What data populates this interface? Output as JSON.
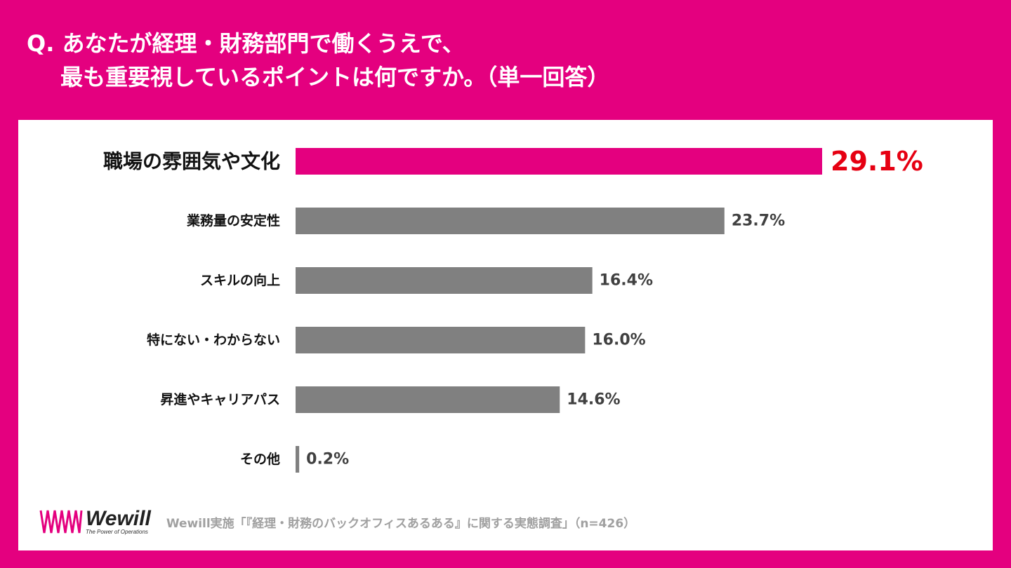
{
  "question": {
    "line1": "Q. あなたが経理・財務部門で働くうえで、",
    "line2": "最も重要視しているポイントは何ですか。（単一回答）"
  },
  "chart_data": {
    "type": "bar",
    "orientation": "horizontal",
    "categories": [
      "職場の雰囲気や文化",
      "業務量の安定性",
      "スキルの向上",
      "特にない・わからない",
      "昇進やキャリアパス",
      "その他"
    ],
    "values": [
      29.1,
      23.7,
      16.4,
      16.0,
      14.6,
      0.2
    ],
    "value_labels": [
      "29.1%",
      "23.7%",
      "16.4%",
      "16.0%",
      "14.6%",
      "0.2%"
    ],
    "highlight_index": 0,
    "colors": {
      "highlight": "#e4007f",
      "default": "#808080",
      "highlight_label": "#e60012",
      "default_label": "#404040"
    },
    "xlim": [
      0,
      29.1
    ],
    "grid": false
  },
  "footer": {
    "logo_name": "Wewill",
    "logo_tagline": "The Power of Operations",
    "source": "Wewill実施「『経理・財務のバックオフィスあるある』に関する実態調査」（n=426）"
  }
}
